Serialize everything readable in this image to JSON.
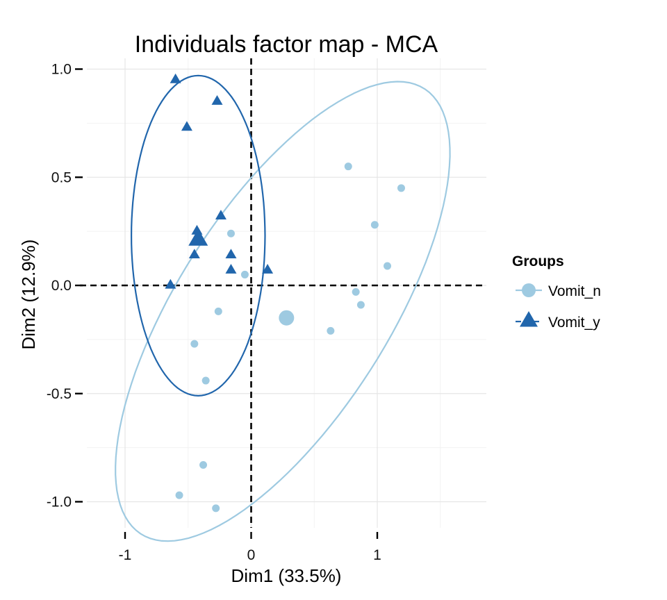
{
  "chart_data": {
    "type": "scatter",
    "title": "Individuals factor map - MCA",
    "xlabel": "Dim1 (33.5%)",
    "ylabel": "Dim2 (12.9%)",
    "xlim": [
      -1.3,
      1.85
    ],
    "ylim": [
      -1.12,
      1.04
    ],
    "x_ticks": [
      -1,
      0,
      1
    ],
    "x_tick_labels": [
      "-1",
      "0",
      "1"
    ],
    "y_ticks": [
      -1.0,
      -0.5,
      0.0,
      0.5,
      1.0
    ],
    "y_tick_labels": [
      "-1.0",
      "-0.5",
      "0.0",
      "0.5",
      "1.0"
    ],
    "grid": true,
    "reference_lines": {
      "x": 0,
      "y": 0,
      "style": "dashed"
    },
    "legend": {
      "title": "Groups",
      "position": "right"
    },
    "series": [
      {
        "name": "Vomit_n",
        "marker": "circle",
        "color": "#9ECAE1",
        "points": [
          {
            "x": 0.77,
            "y": 0.55
          },
          {
            "x": 1.19,
            "y": 0.45
          },
          {
            "x": 0.98,
            "y": 0.28
          },
          {
            "x": -0.16,
            "y": 0.24
          },
          {
            "x": 1.08,
            "y": 0.09
          },
          {
            "x": -0.05,
            "y": 0.05
          },
          {
            "x": 0.83,
            "y": -0.03
          },
          {
            "x": 0.87,
            "y": -0.09
          },
          {
            "x": -0.26,
            "y": -0.12
          },
          {
            "x": 0.63,
            "y": -0.21
          },
          {
            "x": -0.45,
            "y": -0.27
          },
          {
            "x": -0.36,
            "y": -0.44
          },
          {
            "x": -0.38,
            "y": -0.83
          },
          {
            "x": -0.57,
            "y": -0.97
          },
          {
            "x": -0.28,
            "y": -1.03
          }
        ],
        "centroid": {
          "x": 0.28,
          "y": -0.15
        },
        "ellipse": {
          "cx": 0.25,
          "cy": -0.12,
          "semi_major": 1.57,
          "semi_minor": 0.65,
          "angle_deg": 36
        }
      },
      {
        "name": "Vomit_y",
        "marker": "triangle",
        "color": "#2166AC",
        "points": [
          {
            "x": -0.6,
            "y": 0.95
          },
          {
            "x": -0.27,
            "y": 0.85
          },
          {
            "x": -0.51,
            "y": 0.73
          },
          {
            "x": -0.24,
            "y": 0.32
          },
          {
            "x": -0.43,
            "y": 0.25
          },
          {
            "x": -0.45,
            "y": 0.14
          },
          {
            "x": -0.16,
            "y": 0.14
          },
          {
            "x": -0.16,
            "y": 0.07
          },
          {
            "x": 0.13,
            "y": 0.07
          },
          {
            "x": -0.64,
            "y": 0.0
          }
        ],
        "centroid": {
          "x": -0.42,
          "y": 0.21
        },
        "ellipse": {
          "cx": -0.42,
          "cy": 0.23,
          "semi_major": 0.74,
          "semi_minor": 0.53,
          "angle_deg": 90
        }
      }
    ]
  }
}
